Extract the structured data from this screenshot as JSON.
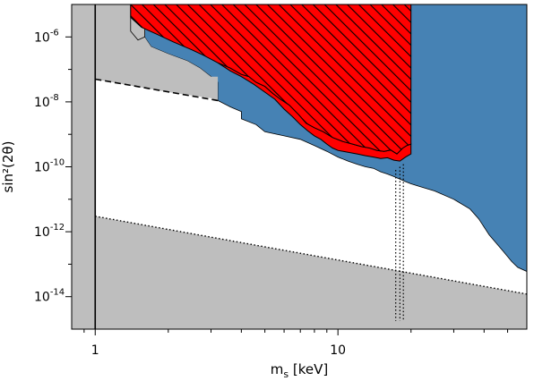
{
  "chart_data": {
    "type": "area",
    "xlabel": "m",
    "xlabel_sub": "s",
    "xlabel_unit": " [keV]",
    "ylabel": "sin²(2θ)",
    "x_scale": "log",
    "y_scale": "log",
    "xlim": [
      0.8,
      60
    ],
    "ylim": [
      1e-15,
      1e-05
    ],
    "x_ticks": [
      {
        "v": 1,
        "label": "1"
      },
      {
        "v": 10,
        "label": "10"
      }
    ],
    "y_ticks": [
      {
        "v": 1e-06,
        "base": "10",
        "exp": "-6"
      },
      {
        "v": 1e-08,
        "base": "10",
        "exp": "-8"
      },
      {
        "v": 1e-10,
        "base": "10",
        "exp": "-10"
      },
      {
        "v": 1e-12,
        "base": "10",
        "exp": "-12"
      },
      {
        "v": 1e-14,
        "base": "10",
        "exp": "-14"
      }
    ],
    "colors": {
      "gray": "#bebebe",
      "blue": "#4682b4",
      "red": "#ff0000",
      "line": "#000000"
    },
    "regions": {
      "gray_left": {
        "x_max": 1
      },
      "gray_top_boundary": [
        [
          1,
          5e-08
        ],
        [
          1.4,
          3.2e-08
        ],
        [
          2,
          2e-08
        ],
        [
          3,
          1.3e-08
        ],
        [
          3.2,
          1.1e-08
        ]
      ],
      "gray_top_small": [
        [
          1.4,
          1e-05
        ],
        [
          1.4,
          1.5e-06
        ],
        [
          1.5,
          8e-07
        ],
        [
          1.6,
          1e-06
        ],
        [
          1.6,
          1e-05
        ]
      ],
      "blue_upper": [
        [
          1.5,
          1e-05
        ],
        [
          1.5,
          2e-06
        ],
        [
          1.7,
          5e-07
        ],
        [
          2.0,
          3e-07
        ],
        [
          2.4,
          1.8e-07
        ],
        [
          2.7,
          1.1e-07
        ],
        [
          3.0,
          6e-08
        ],
        [
          3.2,
          4e-08
        ],
        [
          3.2,
          1.1e-08
        ],
        [
          3.6,
          7e-09
        ],
        [
          4.0,
          5e-09
        ],
        [
          4.0,
          3e-09
        ],
        [
          4.6,
          2e-09
        ],
        [
          5.0,
          1.2e-09
        ],
        [
          6.0,
          9e-10
        ],
        [
          7.0,
          7e-10
        ],
        [
          8.0,
          4.5e-10
        ],
        [
          9.0,
          3e-10
        ],
        [
          10.0,
          2e-10
        ],
        [
          11.0,
          1.5e-10
        ],
        [
          12.0,
          1.2e-10
        ],
        [
          13.0,
          1e-10
        ],
        [
          14.0,
          9e-11
        ],
        [
          15.0,
          7e-11
        ],
        [
          16.0,
          6e-11
        ],
        [
          17.0,
          5e-11
        ],
        [
          18.0,
          4.2e-11
        ],
        [
          19.0,
          3.5e-11
        ],
        [
          20.0,
          3e-11
        ],
        [
          22.0,
          2.4e-11
        ],
        [
          25.0,
          1.8e-11
        ],
        [
          30.0,
          1e-11
        ],
        [
          35.0,
          5e-12
        ],
        [
          38.0,
          2.5e-12
        ],
        [
          42.0,
          8e-13
        ],
        [
          48.0,
          2.5e-13
        ],
        [
          52.0,
          1.2e-13
        ],
        [
          55.0,
          8e-14
        ],
        [
          60.0,
          6e-14
        ],
        [
          60.0,
          1e-05
        ]
      ],
      "blue_extra": [
        [
          6.5,
          3.5e-10
        ],
        [
          8.5,
          2.2e-10
        ],
        [
          10.0,
          1.5e-10
        ],
        [
          12.0,
          1e-10
        ],
        [
          13.5,
          7e-11
        ],
        [
          15.0,
          5e-11
        ],
        [
          16.5,
          5e-11
        ],
        [
          18.0,
          3e-11
        ],
        [
          18.5,
          3.5e-11
        ],
        [
          20.0,
          3e-11
        ]
      ],
      "red_hatched": {
        "x_range": [
          1.4,
          20
        ],
        "lower_edge": [
          [
            1.4,
            1e-05
          ],
          [
            1.4,
            4e-06
          ],
          [
            1.55,
            2e-06
          ],
          [
            1.8,
            1.2e-06
          ],
          [
            2.1,
            7e-07
          ],
          [
            2.5,
            4e-07
          ],
          [
            2.8,
            2.7e-07
          ],
          [
            3.2,
            1.6e-07
          ],
          [
            3.6,
            1.1e-07
          ],
          [
            4.0,
            7e-08
          ],
          [
            4.3,
            6e-08
          ],
          [
            4.6,
            4e-08
          ],
          [
            5.0,
            3e-08
          ],
          [
            5.4,
            1.8e-08
          ],
          [
            5.8,
            1.2e-08
          ],
          [
            6.3,
            8e-09
          ],
          [
            6.9,
            4e-09
          ],
          [
            7.4,
            2.2e-09
          ],
          [
            8.0,
            1.6e-09
          ],
          [
            8.7,
            1.2e-09
          ],
          [
            9.5,
            8e-10
          ],
          [
            10.5,
            6e-10
          ],
          [
            11.5,
            5e-10
          ],
          [
            12.5,
            4.2e-10
          ],
          [
            13.5,
            3.8e-10
          ],
          [
            14.5,
            3.2e-10
          ],
          [
            15.5,
            3e-10
          ],
          [
            16.5,
            3.3e-10
          ],
          [
            17.5,
            2.5e-10
          ],
          [
            18.5,
            3.8e-10
          ],
          [
            19.2,
            4.5e-10
          ],
          [
            20.0,
            5e-10
          ]
        ],
        "fill_band_lower": [
          [
            3.2,
            1.6e-07
          ],
          [
            3.6,
            9e-08
          ],
          [
            4.0,
            6e-08
          ],
          [
            4.5,
            3.5e-08
          ],
          [
            5.0,
            2e-08
          ],
          [
            5.5,
            1.2e-08
          ],
          [
            6.0,
            6e-09
          ],
          [
            6.5,
            3.5e-09
          ],
          [
            7.0,
            2e-09
          ],
          [
            7.5,
            1.3e-09
          ],
          [
            8.0,
            9e-10
          ],
          [
            8.5,
            7e-10
          ],
          [
            9.0,
            5e-10
          ],
          [
            9.5,
            3.8e-10
          ],
          [
            10.0,
            3.2e-10
          ],
          [
            11.0,
            2.8e-10
          ],
          [
            12.0,
            2.5e-10
          ],
          [
            13.0,
            2.2e-10
          ],
          [
            14.0,
            2e-10
          ],
          [
            15.0,
            1.8e-10
          ],
          [
            16.0,
            1.9e-10
          ],
          [
            17.0,
            1.6e-10
          ],
          [
            18.0,
            1.5e-10
          ],
          [
            19.0,
            2e-10
          ],
          [
            20.0,
            2.5e-10
          ]
        ]
      },
      "gray_bottom": {
        "line": [
          [
            1,
            3e-12
          ],
          [
            60,
            1.2e-14
          ]
        ]
      }
    },
    "lines": {
      "vertical_solid": {
        "x": 1
      },
      "dashed": [
        [
          1,
          5e-08
        ],
        [
          3.2,
          1.1e-08
        ]
      ],
      "dotted": [
        [
          1,
          3e-12
        ],
        [
          60,
          1.2e-14
        ]
      ],
      "dotted_vertical": [
        [
          17.3,
          1.8e-15,
          8e-11
        ],
        [
          18.0,
          1.8e-15,
          1e-10
        ],
        [
          18.6,
          1.8e-15,
          1.2e-10
        ]
      ]
    }
  }
}
